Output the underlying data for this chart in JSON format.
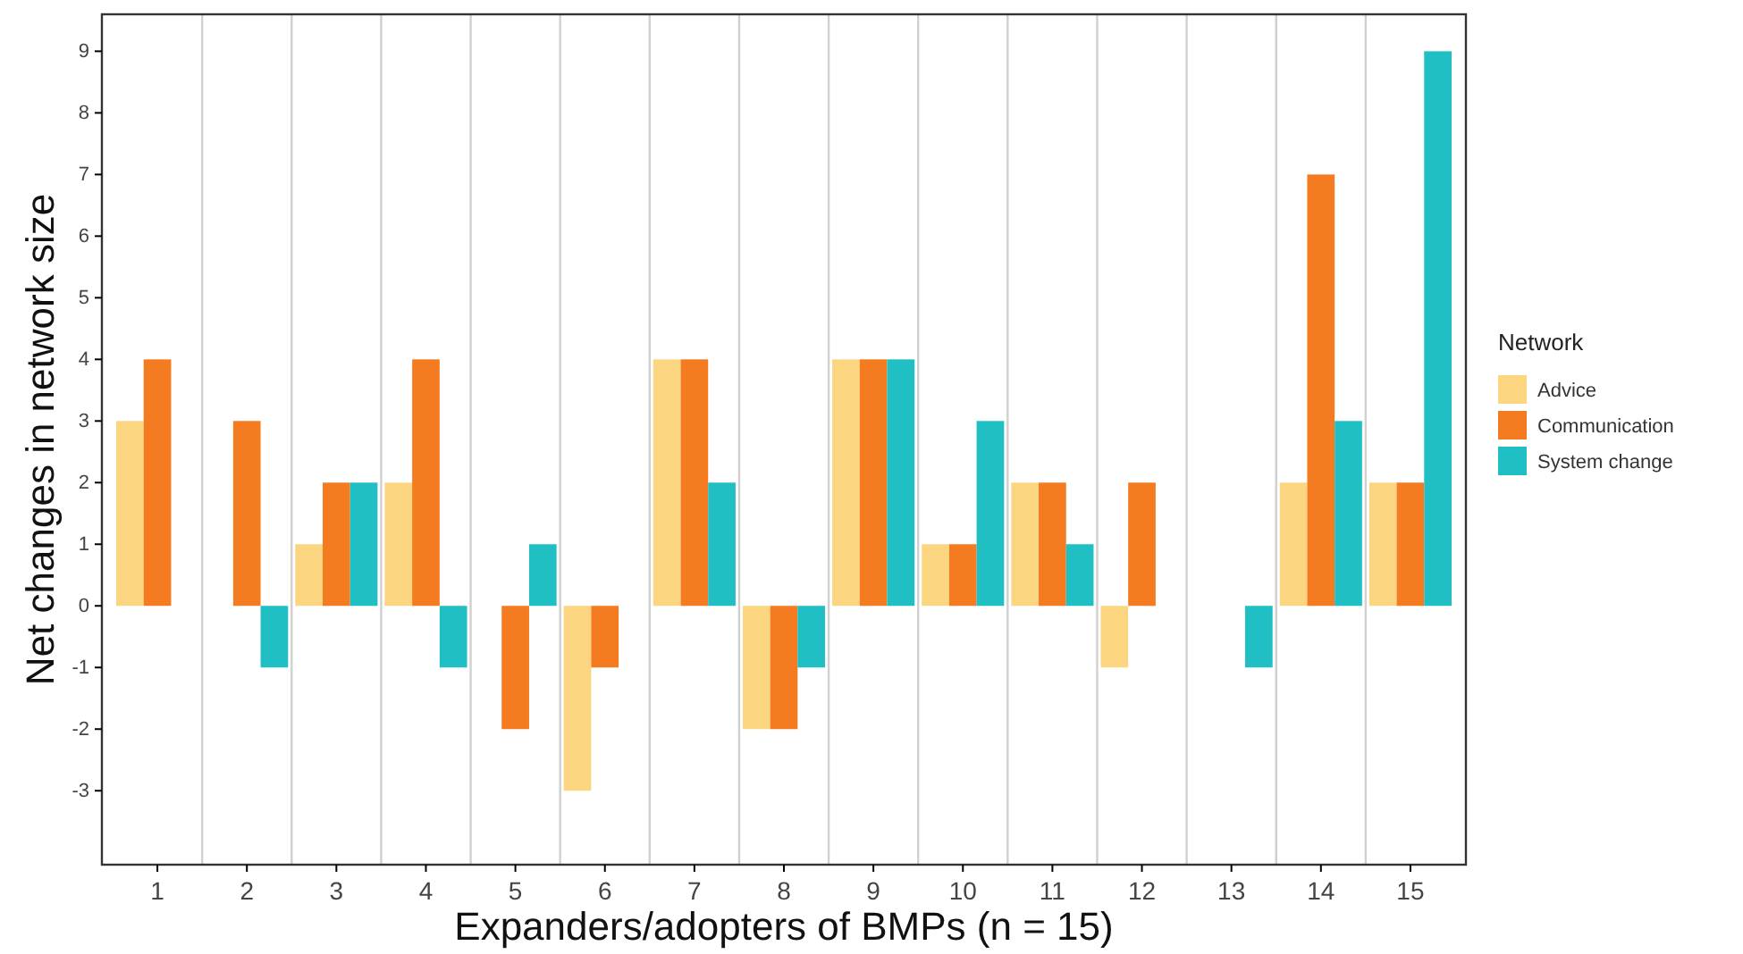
{
  "chart_data": {
    "type": "bar",
    "xlabel": "Expanders/adopters of BMPs (n = 15)",
    "ylabel": "Net changes in network size",
    "legend_title": "Network",
    "categories": [
      "1",
      "2",
      "3",
      "4",
      "5",
      "6",
      "7",
      "8",
      "9",
      "10",
      "11",
      "12",
      "13",
      "14",
      "15"
    ],
    "series": [
      {
        "name": "Advice",
        "color": "#fcd581",
        "values": [
          3,
          0,
          1,
          2,
          0,
          -3,
          4,
          -2,
          4,
          1,
          2,
          -1,
          0,
          2,
          2
        ]
      },
      {
        "name": "Communication",
        "color": "#f47b20",
        "values": [
          4,
          3,
          2,
          4,
          -2,
          -1,
          4,
          -2,
          4,
          1,
          2,
          2,
          0,
          7,
          2
        ]
      },
      {
        "name": "System change",
        "color": "#1fbfc3",
        "values": [
          0,
          -1,
          2,
          -1,
          1,
          0,
          2,
          -1,
          4,
          3,
          1,
          0,
          -1,
          3,
          9
        ]
      }
    ],
    "ylim": [
      -4.2,
      9.6
    ],
    "yticks": [
      -3,
      -2,
      -1,
      0,
      1,
      2,
      3,
      4,
      5,
      6,
      7,
      8,
      9
    ],
    "grid": "x",
    "legend": "right"
  }
}
